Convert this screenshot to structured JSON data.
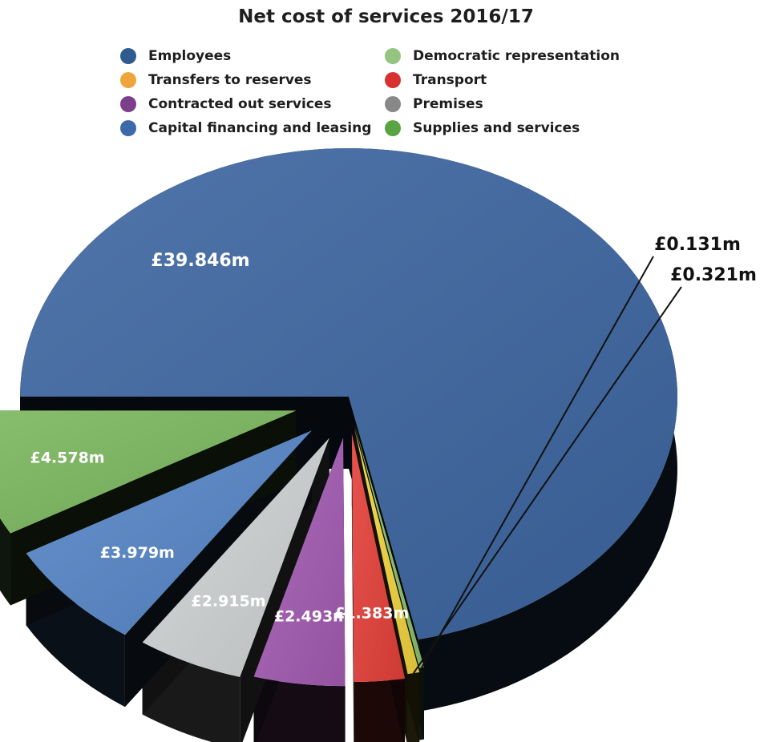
{
  "chart_data": {
    "type": "pie",
    "title": "Net cost of services 2016/17",
    "legend_placement": "top",
    "categories": [
      "Employees",
      "Transfers to reserves",
      "Contracted out services",
      "Capital financing and leasing",
      "Democratic representation",
      "Transport",
      "Premises",
      "Supplies and services"
    ],
    "legend": [
      {
        "name": "Employees",
        "color": "#2f5a8f"
      },
      {
        "name": "Transfers to reserves",
        "color": "#f0a53c"
      },
      {
        "name": "Contracted out services",
        "color": "#7b3f8c"
      },
      {
        "name": "Capital financing and leasing",
        "color": "#3c6aa8"
      },
      {
        "name": "Democratic representation",
        "color": "#94c47f"
      },
      {
        "name": "Transport",
        "color": "#d8312f"
      },
      {
        "name": "Premises",
        "color": "#888888"
      },
      {
        "name": "Supplies and services",
        "color": "#5aa342"
      }
    ],
    "slices": [
      {
        "name": "Employees",
        "value": 39.846,
        "label": "£39.846m",
        "color": "#3d66a1",
        "explode": 0
      },
      {
        "name": "Democratic representation",
        "value": 0.131,
        "label": "£0.131m",
        "color": "#8cc26f",
        "explode": 1
      },
      {
        "name": "Transfers to reserves",
        "value": 0.321,
        "label": "£0.321m",
        "color": "#f2d440",
        "explode": 1
      },
      {
        "name": "Transport",
        "value": 1.383,
        "label": "£1.383m",
        "color": "#e5403a",
        "explode": 1
      },
      {
        "name": "Contracted out services",
        "value": 2.493,
        "label": "£2.493m",
        "color": "#a35cb3",
        "explode": 1
      },
      {
        "name": "Premises",
        "value": 2.915,
        "label": "£2.915m",
        "color": "#cfd3d3",
        "explode": 1
      },
      {
        "name": "Capital financing and leasing",
        "value": 3.979,
        "label": "£3.979m",
        "color": "#5686c7",
        "explode": 1
      },
      {
        "name": "Supplies and services",
        "value": 4.578,
        "label": "£4.578m",
        "color": "#7bb85f",
        "explode": 1
      }
    ]
  }
}
